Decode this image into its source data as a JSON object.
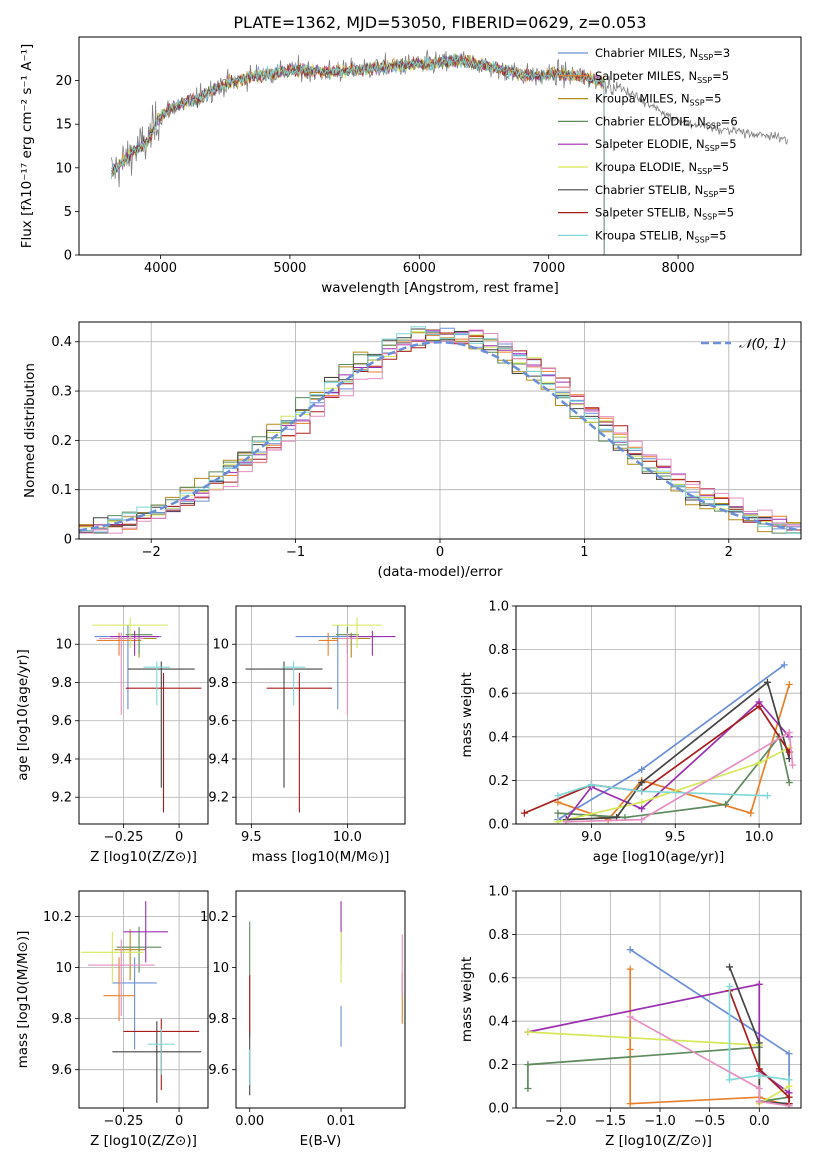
{
  "figure": {
    "title": "PLATE=1362, MJD=53050, FIBERID=0629, z=0.053"
  },
  "colors": {
    "palette": [
      "#6a8fd8",
      "#e87f2a",
      "#b08c1a",
      "#5e8a5e",
      "#9b2fb0",
      "#d6e85a",
      "#444444",
      "#a81c1c",
      "#7fd8d8",
      "#e58fc2",
      "#808080"
    ],
    "grid": "#b0b0b0"
  },
  "chart_data": [
    {
      "id": "spectrum",
      "type": "line",
      "xlabel": "wavelength [Angstrom, rest frame]",
      "ylabel": "Flux [fλ10⁻¹⁷ erg cm⁻² s⁻¹ A⁻¹]",
      "xlim": [
        3370,
        8950
      ],
      "ylim": [
        0,
        25
      ],
      "xticks": [
        4000,
        5000,
        6000,
        7000,
        8000
      ],
      "yticks": [
        0,
        5,
        10,
        15,
        20
      ],
      "grid": false,
      "legend_position": "top-right",
      "legend": [
        "Chabrier MILES, N_SSP=3",
        "Salpeter MILES, N_SSP=5",
        "Kroupa MILES, N_SSP=5",
        "Chabrier ELODIE, N_SSP=6",
        "Salpeter ELODIE, N_SSP=5",
        "Kroupa ELODIE, N_SSP=5",
        "Chabrier STELIB, N_SSP=5",
        "Salpeter STELIB, N_SSP=5",
        "Kroupa STELIB, N_SSP=5"
      ],
      "continuum": {
        "x": [
          3620,
          3700,
          3800,
          3900,
          4000,
          4100,
          4200,
          4300,
          4400,
          4500,
          4700,
          4900,
          5100,
          5300,
          5500,
          5700,
          5900,
          6100,
          6300,
          6500,
          6700,
          6900,
          7100,
          7300,
          7400,
          7500,
          7700,
          7900,
          8100,
          8300,
          8500,
          8800
        ],
        "y": [
          9.5,
          10.5,
          12,
          13,
          16,
          17,
          17.5,
          18,
          19,
          19.5,
          20.5,
          21,
          21.2,
          21,
          21.2,
          21.5,
          21.8,
          22,
          22.3,
          21.8,
          21,
          20.5,
          20.8,
          20.3,
          20,
          19.5,
          18,
          16,
          15,
          14.5,
          14,
          13.5
        ]
      },
      "model_ranges": [
        {
          "series": 0,
          "x": [
            3620,
            7430
          ]
        },
        {
          "series": 1,
          "x": [
            3620,
            7430
          ]
        },
        {
          "series": 2,
          "x": [
            3620,
            7430
          ]
        },
        {
          "series": 3,
          "x": [
            3620,
            7430
          ]
        },
        {
          "series": 4,
          "x": [
            3620,
            7430
          ]
        },
        {
          "series": 5,
          "x": [
            3620,
            7430
          ]
        },
        {
          "series": 6,
          "x": [
            3620,
            7430
          ]
        },
        {
          "series": 7,
          "x": [
            3620,
            7430
          ]
        },
        {
          "series": 8,
          "x": [
            3620,
            7430
          ]
        }
      ],
      "observed_range": [
        3620,
        8850
      ]
    },
    {
      "id": "residuals",
      "type": "histogram",
      "xlabel": "(data-model)/error",
      "ylabel": "Normed distribution",
      "xlim": [
        -2.5,
        2.5
      ],
      "ylim": [
        0,
        0.44
      ],
      "xticks": [
        -2,
        -1,
        0,
        1,
        2
      ],
      "yticks": [
        0,
        0.1,
        0.2,
        0.3,
        0.4
      ],
      "grid": true,
      "legend_position": "top-right",
      "legend": [
        "N(0, 1)"
      ],
      "bin_width": 0.1
    },
    {
      "id": "age-vs-Z",
      "type": "scatter",
      "xlabel": "Z [log10(Z/Z⊙)]",
      "ylabel": "age [log10(age/yr)]",
      "xlim": [
        -0.45,
        0.13
      ],
      "ylim": [
        9.06,
        10.2
      ],
      "xticks": [
        -0.25,
        0.0
      ],
      "yticks": [
        9.2,
        9.4,
        9.6,
        9.8,
        10.0
      ],
      "grid": true,
      "points": [
        {
          "series": 0,
          "x": -0.23,
          "y": 10.04,
          "xerr": 0.15,
          "yerr": [
            0.38,
            0.06
          ]
        },
        {
          "series": 1,
          "x": -0.27,
          "y": 10.02,
          "xerr": 0.1,
          "yerr": [
            0.08,
            0.04
          ]
        },
        {
          "series": 2,
          "x": -0.18,
          "y": 10.03,
          "xerr": 0.08,
          "yerr": [
            0.1,
            0.03
          ]
        },
        {
          "series": 3,
          "x": -0.18,
          "y": 10.05,
          "xerr": 0.06,
          "yerr": [
            0.1,
            0.04
          ]
        },
        {
          "series": 4,
          "x": -0.2,
          "y": 10.04,
          "xerr": 0.11,
          "yerr": [
            0.1,
            0.03
          ]
        },
        {
          "series": 5,
          "x": -0.22,
          "y": 10.1,
          "xerr": 0.17,
          "yerr": [
            0.12,
            0.04
          ]
        },
        {
          "series": 6,
          "x": -0.08,
          "y": 9.87,
          "xerr": 0.15,
          "yerr": [
            0.62,
            0.04
          ]
        },
        {
          "series": 7,
          "x": -0.07,
          "y": 9.77,
          "xerr": 0.17,
          "yerr": [
            0.65,
            0.08
          ]
        },
        {
          "series": 8,
          "x": -0.1,
          "y": 9.88,
          "xerr": 0.06,
          "yerr": [
            0.2,
            0.03
          ]
        },
        {
          "series": 9,
          "x": -0.26,
          "y": 10.03,
          "xerr": 0.1,
          "yerr": [
            0.4,
            0.03
          ]
        }
      ]
    },
    {
      "id": "age-vs-mass",
      "type": "scatter",
      "xlabel": "mass [log10(M/M⊙)]",
      "ylabel": "",
      "xlim": [
        9.42,
        10.3
      ],
      "ylim": [
        9.06,
        10.2
      ],
      "xticks": [
        9.5,
        10.0
      ],
      "yticks": [
        9.2,
        9.4,
        9.6,
        9.8,
        10.0
      ],
      "grid": true,
      "points": [
        {
          "series": 0,
          "x": 9.95,
          "y": 10.04,
          "xerr": 0.22,
          "yerr": [
            0.38,
            0.06
          ]
        },
        {
          "series": 1,
          "x": 9.9,
          "y": 10.02,
          "xerr": 0.05,
          "yerr": [
            0.08,
            0.04
          ]
        },
        {
          "series": 2,
          "x": 10.02,
          "y": 10.03,
          "xerr": 0.1,
          "yerr": [
            0.1,
            0.03
          ]
        },
        {
          "series": 3,
          "x": 10.0,
          "y": 10.05,
          "xerr": 0.06,
          "yerr": [
            0.1,
            0.04
          ]
        },
        {
          "series": 4,
          "x": 10.13,
          "y": 10.04,
          "xerr": 0.12,
          "yerr": [
            0.1,
            0.03
          ]
        },
        {
          "series": 5,
          "x": 10.05,
          "y": 10.1,
          "xerr": 0.13,
          "yerr": [
            0.12,
            0.04
          ]
        },
        {
          "series": 6,
          "x": 9.67,
          "y": 9.87,
          "xerr": 0.2,
          "yerr": [
            0.62,
            0.04
          ]
        },
        {
          "series": 7,
          "x": 9.75,
          "y": 9.77,
          "xerr": 0.17,
          "yerr": [
            0.65,
            0.08
          ]
        },
        {
          "series": 8,
          "x": 9.72,
          "y": 9.88,
          "xerr": 0.06,
          "yerr": [
            0.2,
            0.03
          ]
        },
        {
          "series": 9,
          "x": 10.0,
          "y": 10.03,
          "xerr": 0.05,
          "yerr": [
            0.4,
            0.03
          ]
        }
      ]
    },
    {
      "id": "mass-weight-vs-age",
      "type": "line",
      "xlabel": "age [log10(age/yr)]",
      "ylabel": "mass weight",
      "xlim": [
        8.55,
        10.25
      ],
      "ylim": [
        0,
        1.0
      ],
      "xticks": [
        9.0,
        9.5,
        10.0
      ],
      "yticks": [
        0.0,
        0.2,
        0.4,
        0.6,
        0.8,
        1.0
      ],
      "grid": true,
      "series": [
        {
          "series": 0,
          "x": [
            8.8,
            9.3,
            10.15
          ],
          "y": [
            0.02,
            0.25,
            0.73
          ]
        },
        {
          "series": 1,
          "x": [
            8.8,
            9.1,
            9.3,
            9.95,
            10.18
          ],
          "y": [
            0.1,
            0.02,
            0.2,
            0.05,
            0.64
          ]
        },
        {
          "series": 3,
          "x": [
            8.8,
            9.2,
            9.8,
            10.12,
            10.18
          ],
          "y": [
            0.05,
            0.03,
            0.09,
            0.4,
            0.19
          ]
        },
        {
          "series": 4,
          "x": [
            8.85,
            9.0,
            9.3,
            10.0,
            10.18
          ],
          "y": [
            0.02,
            0.17,
            0.07,
            0.56,
            0.4
          ]
        },
        {
          "series": 5,
          "x": [
            8.8,
            9.3,
            10.0,
            10.18
          ],
          "y": [
            0.01,
            0.1,
            0.28,
            0.35
          ]
        },
        {
          "series": 6,
          "x": [
            8.85,
            9.15,
            9.3,
            10.05,
            10.18
          ],
          "y": [
            0.02,
            0.03,
            0.19,
            0.65,
            0.3
          ]
        },
        {
          "series": 7,
          "x": [
            8.6,
            9.0,
            9.3,
            10.0,
            10.18
          ],
          "y": [
            0.05,
            0.18,
            0.15,
            0.54,
            0.33
          ]
        },
        {
          "series": 8,
          "x": [
            8.8,
            9.0,
            9.3,
            10.05
          ],
          "y": [
            0.13,
            0.18,
            0.15,
            0.13
          ]
        },
        {
          "series": 9,
          "x": [
            8.85,
            9.3,
            10.18,
            10.2
          ],
          "y": [
            0.01,
            0.02,
            0.42,
            0.27
          ]
        }
      ]
    },
    {
      "id": "mass-vs-Z",
      "type": "scatter",
      "xlabel": "Z [log10(Z/Z⊙)]",
      "ylabel": "mass [log10(M/M⊙)]",
      "xlim": [
        -0.45,
        0.13
      ],
      "ylim": [
        9.45,
        10.3
      ],
      "xticks": [
        -0.25,
        0.0
      ],
      "yticks": [
        9.6,
        9.8,
        10.0,
        10.2
      ],
      "grid": true,
      "points": [
        {
          "series": 0,
          "x": -0.2,
          "y": 9.94,
          "xerr": 0.1,
          "yerr": [
            0.26,
            0.1
          ]
        },
        {
          "series": 1,
          "x": -0.27,
          "y": 9.89,
          "xerr": 0.07,
          "yerr": [
            0.1,
            0.15
          ]
        },
        {
          "series": 2,
          "x": -0.22,
          "y": 10.07,
          "xerr": 0.07,
          "yerr": [
            0.12,
            0.08
          ]
        },
        {
          "series": 3,
          "x": -0.18,
          "y": 10.08,
          "xerr": 0.1,
          "yerr": [
            0.1,
            0.08
          ]
        },
        {
          "series": 4,
          "x": -0.15,
          "y": 10.14,
          "xerr": 0.1,
          "yerr": [
            0.12,
            0.12
          ]
        },
        {
          "series": 5,
          "x": -0.3,
          "y": 10.06,
          "xerr": 0.14,
          "yerr": [
            0.12,
            0.08
          ]
        },
        {
          "series": 6,
          "x": -0.1,
          "y": 9.67,
          "xerr": 0.2,
          "yerr": [
            0.2,
            0.12
          ]
        },
        {
          "series": 7,
          "x": -0.08,
          "y": 9.75,
          "xerr": 0.17,
          "yerr": [
            0.23,
            0.05
          ]
        },
        {
          "series": 8,
          "x": -0.08,
          "y": 9.7,
          "xerr": 0.06,
          "yerr": [
            0.12,
            0.06
          ]
        },
        {
          "series": 9,
          "x": -0.26,
          "y": 10.01,
          "xerr": 0.15,
          "yerr": [
            0.2,
            0.1
          ]
        }
      ]
    },
    {
      "id": "mass-vs-EBV",
      "type": "scatter",
      "xlabel": "E(B-V)",
      "ylabel": "",
      "xlim": [
        -0.0015,
        0.017
      ],
      "ylim": [
        9.45,
        10.3
      ],
      "xticks": [
        0.0,
        0.01
      ],
      "yticks": [
        9.6,
        9.8,
        10.0,
        10.2
      ],
      "grid": false,
      "points": [
        {
          "series": 0,
          "x": 0.01,
          "y": 9.77,
          "yerr": [
            0.08,
            0.08
          ]
        },
        {
          "series": 1,
          "x": 0.0167,
          "y": 9.88,
          "yerr": [
            0.1,
            0.1
          ]
        },
        {
          "series": 3,
          "x": 0.0,
          "y": 9.98,
          "yerr": [
            0.25,
            0.2
          ]
        },
        {
          "series": 4,
          "x": 0.01,
          "y": 10.14,
          "yerr": [
            0.12,
            0.12
          ]
        },
        {
          "series": 5,
          "x": 0.01,
          "y": 10.04,
          "yerr": [
            0.1,
            0.1
          ]
        },
        {
          "series": 6,
          "x": 0.0,
          "y": 9.6,
          "yerr": [
            0.1,
            0.15
          ]
        },
        {
          "series": 7,
          "x": 0.0,
          "y": 9.87,
          "yerr": [
            0.12,
            0.1
          ]
        },
        {
          "series": 8,
          "x": 0.0,
          "y": 9.62,
          "yerr": [
            0.08,
            0.06
          ]
        },
        {
          "series": 9,
          "x": 0.0167,
          "y": 10.01,
          "yerr": [
            0.12,
            0.12
          ]
        }
      ]
    },
    {
      "id": "mass-weight-vs-Z",
      "type": "line",
      "xlabel": "Z [log10(Z/Z⊙)]",
      "ylabel": "mass weight",
      "xlim": [
        -2.45,
        0.42
      ],
      "ylim": [
        0,
        1.0
      ],
      "xticks": [
        -2.0,
        -1.5,
        -1.0,
        -0.5,
        0.0
      ],
      "yticks": [
        0.0,
        0.2,
        0.4,
        0.6,
        0.8,
        1.0
      ],
      "grid": true,
      "series": [
        {
          "series": 0,
          "x": [
            -1.3,
            0.3,
            0.3
          ],
          "y": [
            0.73,
            0.25,
            0.02
          ]
        },
        {
          "series": 1,
          "x": [
            -1.3,
            -1.3,
            -1.3,
            0.0,
            0.3
          ],
          "y": [
            0.64,
            0.27,
            0.02,
            0.05,
            0.01
          ]
        },
        {
          "series": 3,
          "x": [
            -2.33,
            -2.33,
            0.0,
            0.0,
            0.3
          ],
          "y": [
            0.09,
            0.2,
            0.28,
            0.03,
            0.05
          ]
        },
        {
          "series": 4,
          "x": [
            -2.33,
            0.0,
            0.0,
            0.3
          ],
          "y": [
            0.35,
            0.57,
            0.17,
            0.07
          ]
        },
        {
          "series": 5,
          "x": [
            -2.33,
            0.0,
            0.0,
            0.3
          ],
          "y": [
            0.35,
            0.29,
            0.02,
            0.1
          ]
        },
        {
          "series": 6,
          "x": [
            -0.3,
            0.0,
            0.0,
            0.3
          ],
          "y": [
            0.65,
            0.3,
            0.03,
            0.02
          ]
        },
        {
          "series": 7,
          "x": [
            -0.3,
            0.0,
            0.3,
            0.3
          ],
          "y": [
            0.54,
            0.18,
            0.05,
            0.02
          ]
        },
        {
          "series": 8,
          "x": [
            -0.3,
            -0.3,
            0.0,
            0.3
          ],
          "y": [
            0.56,
            0.13,
            0.15,
            0.13
          ]
        },
        {
          "series": 9,
          "x": [
            -1.3,
            0.0,
            0.0,
            0.3
          ],
          "y": [
            0.42,
            0.09,
            0.03,
            0.01
          ]
        }
      ]
    }
  ]
}
